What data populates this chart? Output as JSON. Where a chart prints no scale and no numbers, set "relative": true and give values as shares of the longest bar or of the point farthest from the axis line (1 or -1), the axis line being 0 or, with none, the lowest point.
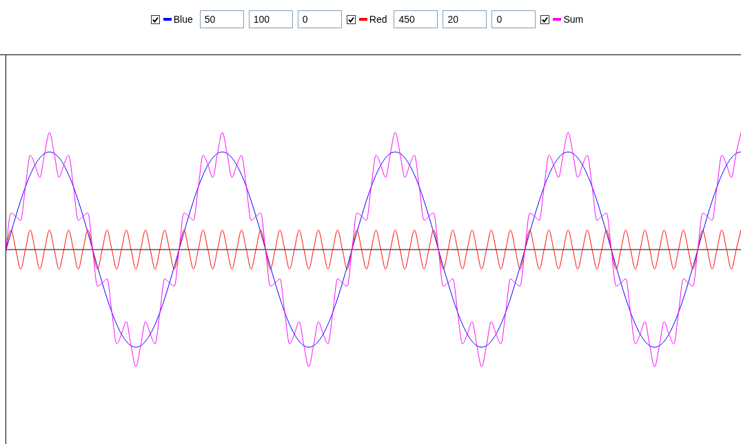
{
  "chart_data": {
    "type": "line",
    "relative": true,
    "legend": "top",
    "line_style": "solid",
    "categories": [
      null,
      null,
      null,
      null,
      null,
      null,
      null,
      null,
      null,
      null,
      null,
      null,
      null,
      null,
      null,
      null,
      null,
      null,
      null,
      null,
      null,
      null,
      null,
      null,
      null,
      null,
      null,
      null,
      null,
      null,
      null,
      null,
      null,
      null,
      null,
      null,
      null,
      null,
      null,
      null,
      null,
      null,
      null,
      null,
      null,
      null,
      null,
      null,
      null,
      null,
      null,
      null,
      null,
      null,
      null,
      null,
      null,
      null,
      null,
      null,
      null,
      null,
      null,
      null,
      null,
      null,
      null,
      null,
      null,
      null,
      null,
      null,
      null,
      null,
      null,
      null,
      null,
      null,
      null,
      null,
      null,
      null,
      null,
      null,
      null,
      null,
      null,
      null,
      null,
      null,
      null,
      null,
      null,
      null,
      null,
      null,
      null,
      null,
      null,
      null,
      null,
      null,
      null,
      null,
      null,
      null,
      null,
      null,
      null,
      null,
      null,
      null,
      null,
      null,
      null,
      null,
      null,
      null,
      null,
      null,
      null,
      null,
      null,
      null,
      null,
      null,
      null,
      null,
      null,
      null,
      null,
      null,
      null,
      null,
      null,
      null,
      null,
      null,
      null,
      null,
      null,
      null,
      null,
      null,
      null,
      null,
      null,
      null,
      null,
      null,
      null,
      null,
      null,
      null
    ],
    "series": [
      {
        "name": "Blue",
        "color": "#0000ff",
        "values": [
          0,
          0.145,
          0.285,
          0.417,
          0.536,
          0.638,
          0.722,
          0.783,
          0.821,
          0.833,
          0.821,
          0.783,
          0.722,
          0.638,
          0.536,
          0.417,
          0.285,
          0.145,
          0,
          -0.145,
          -0.285,
          -0.417,
          -0.536,
          -0.638,
          -0.722,
          -0.783,
          -0.821,
          -0.833,
          -0.821,
          -0.783,
          -0.722,
          -0.638,
          -0.536,
          -0.417,
          -0.285,
          -0.145,
          0,
          0.145,
          0.285,
          0.417,
          0.536,
          0.638,
          0.722,
          0.783,
          0.821,
          0.833,
          0.821,
          0.783,
          0.722,
          0.638,
          0.536,
          0.417,
          0.285,
          0.145,
          0,
          -0.145,
          -0.285,
          -0.417,
          -0.536,
          -0.638,
          -0.722,
          -0.783,
          -0.821,
          -0.833,
          -0.821,
          -0.783,
          -0.722,
          -0.638,
          -0.536,
          -0.417,
          -0.285,
          -0.145,
          0,
          0.145,
          0.285,
          0.417,
          0.536,
          0.638,
          0.722,
          0.783,
          0.821,
          0.833,
          0.821,
          0.783,
          0.722,
          0.638,
          0.536,
          0.417,
          0.285,
          0.145,
          0,
          -0.145,
          -0.285,
          -0.417,
          -0.536,
          -0.638,
          -0.722,
          -0.783,
          -0.821,
          -0.833,
          -0.821,
          -0.783,
          -0.722,
          -0.638,
          -0.536,
          -0.417,
          -0.285,
          -0.145,
          0,
          0.145,
          0.285,
          0.417,
          0.536,
          0.638,
          0.722,
          0.783,
          0.821,
          0.833,
          0.821,
          0.783,
          0.722,
          0.638,
          0.536,
          0.417,
          0.285,
          0.145,
          0,
          -0.145,
          -0.285,
          -0.417,
          -0.536,
          -0.638,
          -0.722,
          -0.783,
          -0.821,
          -0.833,
          -0.821,
          -0.783,
          -0.722,
          -0.638,
          -0.536,
          -0.417,
          -0.285,
          -0.145,
          0,
          0.145,
          0.285,
          0.417,
          0.536,
          0.638,
          0.722,
          0.783,
          0.821,
          0.833
        ]
      },
      {
        "name": "Red",
        "color": "#ff0000",
        "values": [
          0,
          0.167,
          0,
          -0.167,
          0,
          0.167,
          0,
          -0.167,
          0,
          0.167,
          0,
          -0.167,
          0,
          0.167,
          0,
          -0.167,
          0,
          0.167,
          0,
          -0.167,
          0,
          0.167,
          0,
          -0.167,
          0,
          0.167,
          0,
          -0.167,
          0,
          0.167,
          0,
          -0.167,
          0,
          0.167,
          0,
          -0.167,
          0,
          0.167,
          0,
          -0.167,
          0,
          0.167,
          0,
          -0.167,
          0,
          0.167,
          0,
          -0.167,
          0,
          0.167,
          0,
          -0.167,
          0,
          0.167,
          0,
          -0.167,
          0,
          0.167,
          0,
          -0.167,
          0,
          0.167,
          0,
          -0.167,
          0,
          0.167,
          0,
          -0.167,
          0,
          0.167,
          0,
          -0.167,
          0,
          0.167,
          0,
          -0.167,
          0,
          0.167,
          0,
          -0.167,
          0,
          0.167,
          0,
          -0.167,
          0,
          0.167,
          0,
          -0.167,
          0,
          0.167,
          0,
          -0.167,
          0,
          0.167,
          0,
          -0.167,
          0,
          0.167,
          0,
          -0.167,
          0,
          0.167,
          0,
          -0.167,
          0,
          0.167,
          0,
          -0.167,
          0,
          0.167,
          0,
          -0.167,
          0,
          0.167,
          0,
          -0.167,
          0,
          0.167,
          0,
          -0.167,
          0,
          0.167,
          0,
          -0.167,
          0,
          0.167,
          0,
          -0.167,
          0,
          0.167,
          0,
          -0.167,
          0,
          0.167,
          0,
          -0.167,
          0,
          0.167,
          0,
          -0.167,
          0,
          0.167,
          0,
          -0.167,
          0,
          0.167,
          0,
          -0.167,
          0,
          0.167,
          0,
          -0.167,
          0,
          0.167
        ]
      },
      {
        "name": "Sum",
        "color": "#ff00ff",
        "values": [
          0,
          0.312,
          0.285,
          0.25,
          0.536,
          0.805,
          0.722,
          0.616,
          0.821,
          1,
          0.821,
          0.616,
          0.722,
          0.805,
          0.536,
          0.25,
          0.285,
          0.312,
          0,
          -0.312,
          -0.285,
          -0.25,
          -0.536,
          -0.805,
          -0.722,
          -0.616,
          -0.821,
          -1,
          -0.821,
          -0.616,
          -0.722,
          -0.805,
          -0.536,
          -0.25,
          -0.285,
          -0.312,
          0,
          0.312,
          0.285,
          0.25,
          0.536,
          0.805,
          0.722,
          0.616,
          0.821,
          1,
          0.821,
          0.616,
          0.722,
          0.805,
          0.536,
          0.25,
          0.285,
          0.312,
          0,
          -0.312,
          -0.285,
          -0.25,
          -0.536,
          -0.805,
          -0.722,
          -0.616,
          -0.821,
          -1,
          -0.821,
          -0.616,
          -0.722,
          -0.805,
          -0.536,
          -0.25,
          -0.285,
          -0.312,
          0,
          0.312,
          0.285,
          0.25,
          0.536,
          0.805,
          0.722,
          0.616,
          0.821,
          1,
          0.821,
          0.616,
          0.722,
          0.805,
          0.536,
          0.25,
          0.285,
          0.312,
          0,
          -0.312,
          -0.285,
          -0.25,
          -0.536,
          -0.805,
          -0.722,
          -0.616,
          -0.821,
          -1,
          -0.821,
          -0.616,
          -0.722,
          -0.805,
          -0.536,
          -0.25,
          -0.285,
          -0.312,
          0,
          0.312,
          0.285,
          0.25,
          0.536,
          0.805,
          0.722,
          0.616,
          0.821,
          1,
          0.821,
          0.616,
          0.722,
          0.805,
          0.536,
          0.25,
          0.285,
          0.312,
          0,
          -0.312,
          -0.285,
          -0.25,
          -0.536,
          -0.805,
          -0.722,
          -0.616,
          -0.821,
          -1,
          -0.821,
          -0.616,
          -0.722,
          -0.805,
          -0.536,
          -0.25,
          -0.285,
          -0.312,
          0,
          0.312,
          0.285,
          0.25,
          0.536,
          0.805,
          0.722,
          0.616,
          0.821,
          1
        ]
      }
    ],
    "annotations": [
      "50",
      "100",
      "0",
      "450",
      "20",
      "0"
    ]
  }
}
